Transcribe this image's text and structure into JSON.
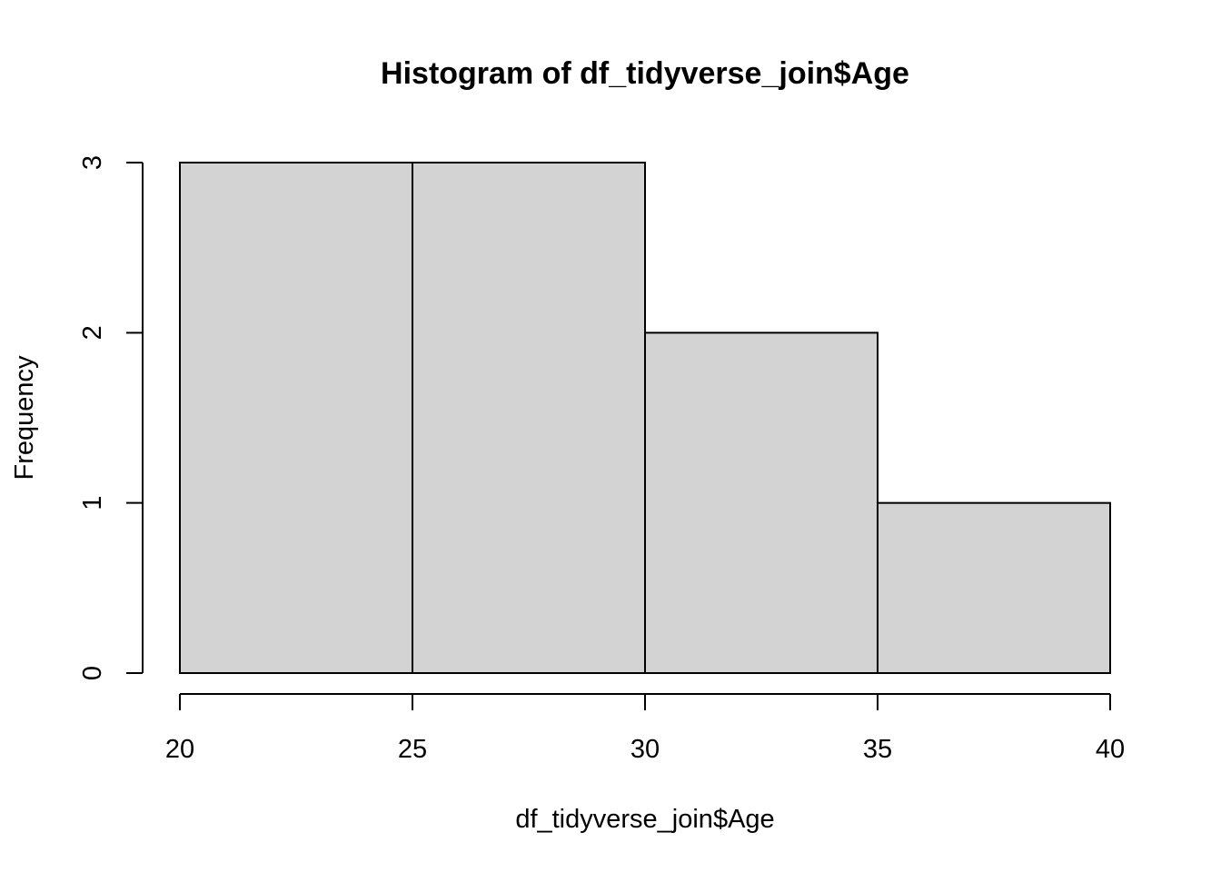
{
  "chart_data": {
    "type": "bar",
    "title": "Histogram of df_tidyverse_join$Age",
    "xlabel": "df_tidyverse_join$Age",
    "ylabel": "Frequency",
    "bins": [
      {
        "start": 20,
        "end": 25,
        "count": 3
      },
      {
        "start": 25,
        "end": 30,
        "count": 3
      },
      {
        "start": 30,
        "end": 35,
        "count": 2
      },
      {
        "start": 35,
        "end": 40,
        "count": 1
      }
    ],
    "xlim": [
      20,
      40
    ],
    "ylim": [
      0,
      3
    ],
    "x_ticks": [
      "20",
      "25",
      "30",
      "35",
      "40"
    ],
    "y_ticks": [
      "0",
      "1",
      "2",
      "3"
    ],
    "bar_color": "#d3d3d3",
    "grid": false,
    "legend": "none"
  }
}
